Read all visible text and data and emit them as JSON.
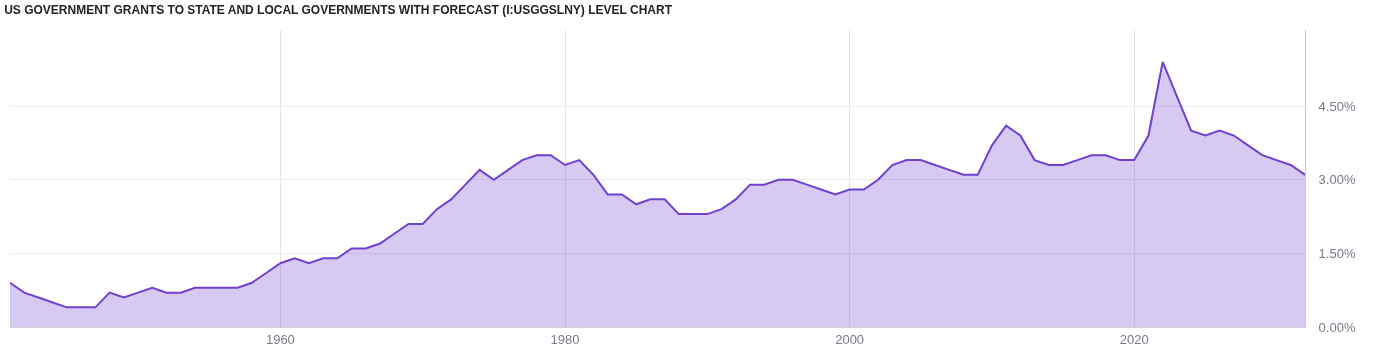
{
  "chart_data": {
    "type": "area",
    "title": "US GOVERNMENT GRANTS TO STATE AND LOCAL GOVERNMENTS WITH FORECAST (I:USGGSLNY) LEVEL CHART",
    "x": [
      1941,
      1942,
      1943,
      1944,
      1945,
      1946,
      1947,
      1948,
      1949,
      1950,
      1951,
      1952,
      1953,
      1954,
      1955,
      1956,
      1957,
      1958,
      1959,
      1960,
      1961,
      1962,
      1963,
      1964,
      1965,
      1966,
      1967,
      1968,
      1969,
      1970,
      1971,
      1972,
      1973,
      1974,
      1975,
      1976,
      1977,
      1978,
      1979,
      1980,
      1981,
      1982,
      1983,
      1984,
      1985,
      1986,
      1987,
      1988,
      1989,
      1990,
      1991,
      1992,
      1993,
      1994,
      1995,
      1996,
      1997,
      1998,
      1999,
      2000,
      2001,
      2002,
      2003,
      2004,
      2005,
      2006,
      2007,
      2008,
      2009,
      2010,
      2011,
      2012,
      2013,
      2014,
      2015,
      2016,
      2017,
      2018,
      2019,
      2020,
      2021,
      2022,
      2023,
      2024,
      2025,
      2026,
      2027,
      2028,
      2029,
      2030,
      2031,
      2032
    ],
    "series": [
      {
        "color": "#7040d0",
        "values": [
          0.9,
          0.7,
          0.6,
          0.5,
          0.4,
          0.4,
          0.4,
          0.7,
          0.6,
          0.7,
          0.8,
          0.7,
          0.7,
          0.8,
          0.8,
          0.8,
          0.8,
          0.9,
          1.1,
          1.3,
          1.4,
          1.3,
          1.4,
          1.4,
          1.6,
          1.6,
          1.7,
          1.9,
          2.1,
          2.1,
          2.4,
          2.6,
          2.9,
          3.2,
          3.0,
          3.2,
          3.4,
          3.5,
          3.5,
          3.3,
          3.4,
          3.1,
          2.7,
          2.7,
          2.5,
          2.6,
          2.6,
          2.3,
          2.3,
          2.3,
          2.4,
          2.6,
          2.9,
          2.9,
          3.0,
          3.0,
          2.9,
          2.8,
          2.7,
          2.8,
          2.8,
          3.0,
          3.3,
          3.4,
          3.4,
          3.3,
          3.2,
          3.1,
          3.1,
          3.7,
          4.1,
          3.9,
          3.4,
          3.3,
          3.3,
          3.4,
          3.5,
          3.5,
          3.4,
          3.4,
          3.9,
          5.4,
          4.7,
          4.0,
          3.9,
          4.0,
          3.9,
          3.7,
          3.5,
          3.4,
          3.3,
          3.1
        ]
      }
    ],
    "xlim": [
      1941,
      2032
    ],
    "xticks": [
      1960,
      1980,
      2000,
      2020
    ],
    "ylim": [
      0,
      6.05
    ],
    "yticks": [
      {
        "value": 0,
        "label": "0.00%"
      },
      {
        "value": 1.5,
        "label": "1.50%"
      },
      {
        "value": 3,
        "label": "3.00%"
      },
      {
        "value": 4.5,
        "label": "4.50%"
      }
    ],
    "grid": true
  }
}
